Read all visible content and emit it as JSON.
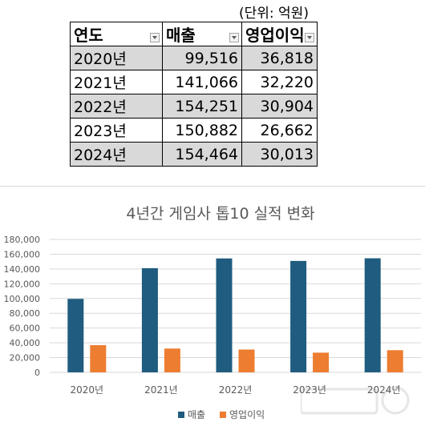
{
  "table": {
    "unit_note": "(단위: 억원)",
    "headers": [
      "연도",
      "매출",
      "영업이익"
    ],
    "rows": [
      {
        "year": "2020년",
        "sales": "99,516",
        "profit": "36,818"
      },
      {
        "year": "2021년",
        "sales": "141,066",
        "profit": "32,220"
      },
      {
        "year": "2022년",
        "sales": "154,251",
        "profit": "30,904"
      },
      {
        "year": "2023년",
        "sales": "150,882",
        "profit": "26,662"
      },
      {
        "year": "2024년",
        "sales": "154,464",
        "profit": "30,013"
      }
    ]
  },
  "chart_data": {
    "type": "bar",
    "title": "4년간 게임사 톱10 실적 변화",
    "categories": [
      "2020년",
      "2021년",
      "2022년",
      "2023년",
      "2024년"
    ],
    "series": [
      {
        "name": "매출",
        "values": [
          99516,
          141066,
          154251,
          150882,
          154464
        ],
        "color": "#1f5c7f"
      },
      {
        "name": "영업이익",
        "values": [
          36818,
          32220,
          30904,
          26662,
          30013
        ],
        "color": "#ed7d31"
      }
    ],
    "ylim": [
      0,
      180000
    ],
    "yticks": [
      "0",
      "20,000",
      "40,000",
      "60,000",
      "80,000",
      "100,000",
      "120,000",
      "140,000",
      "160,000",
      "180,000"
    ],
    "grid": true,
    "legend": "bottom",
    "xlabel": "",
    "ylabel": ""
  },
  "colors": {
    "table_shade": "#d9d9d9",
    "gridline": "#d9d9d9",
    "axis_text": "#595959"
  }
}
